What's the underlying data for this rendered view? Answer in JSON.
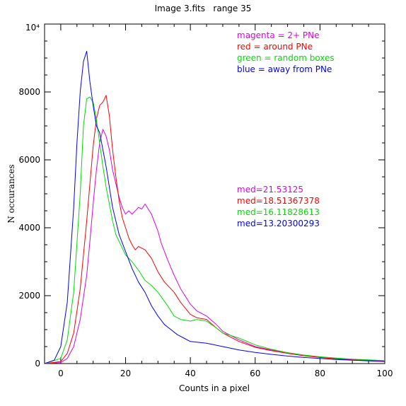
{
  "chart_data": {
    "type": "line",
    "title": "Image 3.fits   range 35",
    "xlabel": "Counts in a pixel",
    "ylabel": "N occurances",
    "xlim": [
      -5,
      100
    ],
    "ylim": [
      0,
      10000
    ],
    "x_ticks": [
      0,
      20,
      40,
      60,
      80,
      100
    ],
    "y_ticks": [
      0,
      2000,
      4000,
      6000,
      8000
    ],
    "y_tick_top": "10⁴",
    "grid": false,
    "legend_position": "top-right",
    "legend": [
      {
        "text": "magenta = 2+ PNe",
        "color": "#e000e0"
      },
      {
        "text": "red = around PNe",
        "color": "#ff0000"
      },
      {
        "text": "green = random boxes",
        "color": "#00dd00"
      },
      {
        "text": "blue = away from PNe",
        "color": "#0000ff"
      }
    ],
    "annotations": [
      {
        "text": "med=21.53125",
        "color": "#e000e0"
      },
      {
        "text": "med=18.51367378",
        "color": "#ff0000"
      },
      {
        "text": "med=16.11828613",
        "color": "#00dd00"
      },
      {
        "text": "med=13.20300293",
        "color": "#0000ff"
      }
    ],
    "series": [
      {
        "color": "#e000e0",
        "x": [
          -5,
          0,
          2,
          4,
          6,
          8,
          9,
          10,
          11,
          12,
          13,
          14,
          15,
          16,
          17,
          18,
          19,
          20,
          21,
          22,
          24,
          25,
          26,
          28,
          30,
          31,
          33,
          35,
          37,
          40,
          42,
          45,
          48,
          50,
          55,
          60,
          65,
          70,
          75,
          80,
          85,
          90,
          95,
          100
        ],
        "y": [
          0,
          30,
          150,
          500,
          1300,
          2600,
          3600,
          4700,
          5700,
          6500,
          6900,
          6700,
          6300,
          5700,
          5300,
          4900,
          4600,
          4400,
          4500,
          4400,
          4600,
          4550,
          4700,
          4400,
          3900,
          3550,
          3050,
          2600,
          2200,
          1750,
          1550,
          1400,
          1150,
          950,
          700,
          500,
          400,
          320,
          250,
          190,
          150,
          120,
          100,
          80
        ]
      },
      {
        "color": "#ff0000",
        "x": [
          -5,
          0,
          2,
          4,
          6,
          8,
          9,
          10,
          11,
          12,
          13,
          14,
          15,
          16,
          17,
          18,
          19,
          20,
          21,
          22,
          23,
          24,
          25,
          26,
          28,
          30,
          32,
          35,
          37,
          40,
          42,
          45,
          48,
          50,
          55,
          60,
          65,
          70,
          75,
          80,
          85,
          90,
          95,
          100
        ],
        "y": [
          0,
          60,
          300,
          900,
          2200,
          4200,
          5300,
          6400,
          7200,
          7600,
          7700,
          7900,
          7300,
          6300,
          5500,
          4800,
          4300,
          4000,
          3700,
          3500,
          3350,
          3450,
          3400,
          3350,
          3100,
          2700,
          2400,
          2100,
          1800,
          1450,
          1350,
          1300,
          1050,
          900,
          650,
          480,
          380,
          300,
          230,
          180,
          140,
          110,
          90,
          70
        ]
      },
      {
        "color": "#00dd00",
        "x": [
          -5,
          0,
          2,
          4,
          6,
          7,
          8,
          9,
          10,
          11,
          12,
          13,
          14,
          15,
          16,
          17,
          18,
          19,
          20,
          22,
          24,
          26,
          28,
          30,
          33,
          35,
          37,
          40,
          42,
          45,
          48,
          50,
          55,
          60,
          65,
          70,
          75,
          80,
          85,
          90,
          95,
          100
        ],
        "y": [
          0,
          150,
          700,
          2100,
          5000,
          7000,
          7800,
          7850,
          7700,
          7200,
          6500,
          5800,
          5200,
          4700,
          4200,
          3800,
          3600,
          3400,
          3200,
          3000,
          2750,
          2450,
          2300,
          2100,
          1700,
          1400,
          1300,
          1250,
          1300,
          1250,
          1050,
          900,
          750,
          550,
          420,
          320,
          250,
          200,
          160,
          130,
          110,
          90
        ]
      },
      {
        "color": "#0000ff",
        "x": [
          -5,
          -2,
          0,
          2,
          4,
          5,
          6,
          7,
          8,
          9,
          10,
          11,
          12,
          13,
          14,
          15,
          16,
          17,
          18,
          20,
          22,
          24,
          26,
          28,
          30,
          32,
          34,
          36,
          38,
          40,
          45,
          50,
          55,
          60,
          65,
          70,
          75,
          80,
          85,
          90,
          95,
          100
        ],
        "y": [
          0,
          100,
          500,
          1800,
          4600,
          6500,
          8000,
          8900,
          9200,
          8300,
          7600,
          7000,
          6800,
          6300,
          5800,
          5200,
          4600,
          4200,
          3800,
          3300,
          2800,
          2400,
          2100,
          1700,
          1400,
          1150,
          1000,
          850,
          750,
          650,
          600,
          500,
          400,
          330,
          270,
          220,
          180,
          150,
          120,
          100,
          80,
          60
        ]
      }
    ]
  }
}
